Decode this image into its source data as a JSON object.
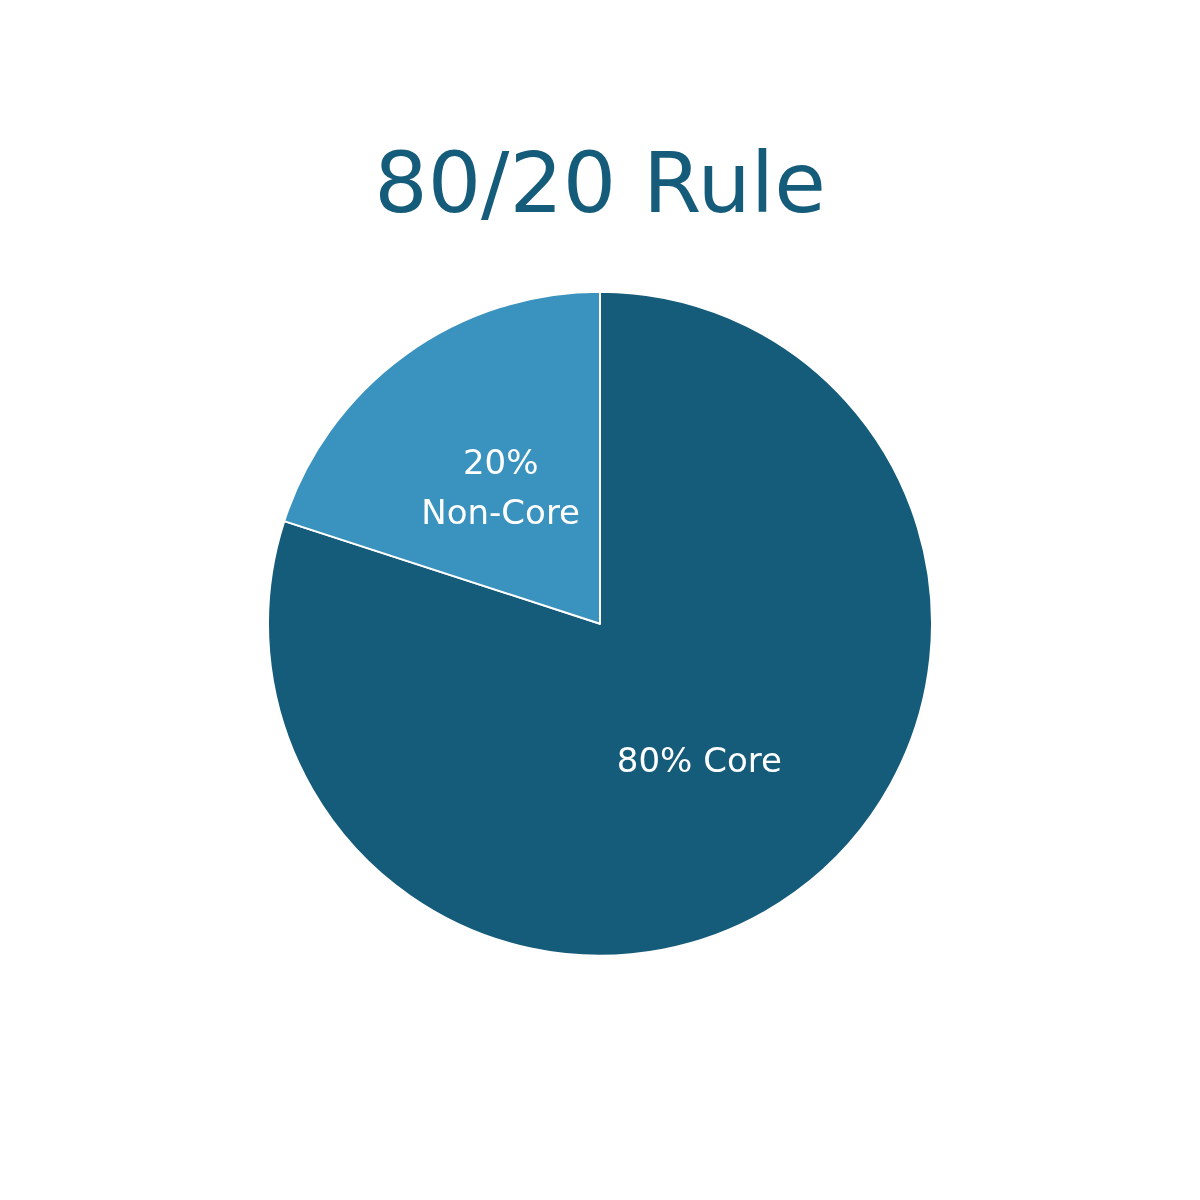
{
  "chart_data": {
    "type": "pie",
    "title": "80/20 Rule",
    "categories": [
      "Core",
      "Non-Core"
    ],
    "values": [
      80,
      20
    ],
    "colors": [
      "#155b7a",
      "#3a93bf"
    ],
    "value_labels": [
      "80%",
      "20%"
    ],
    "legend": false
  }
}
